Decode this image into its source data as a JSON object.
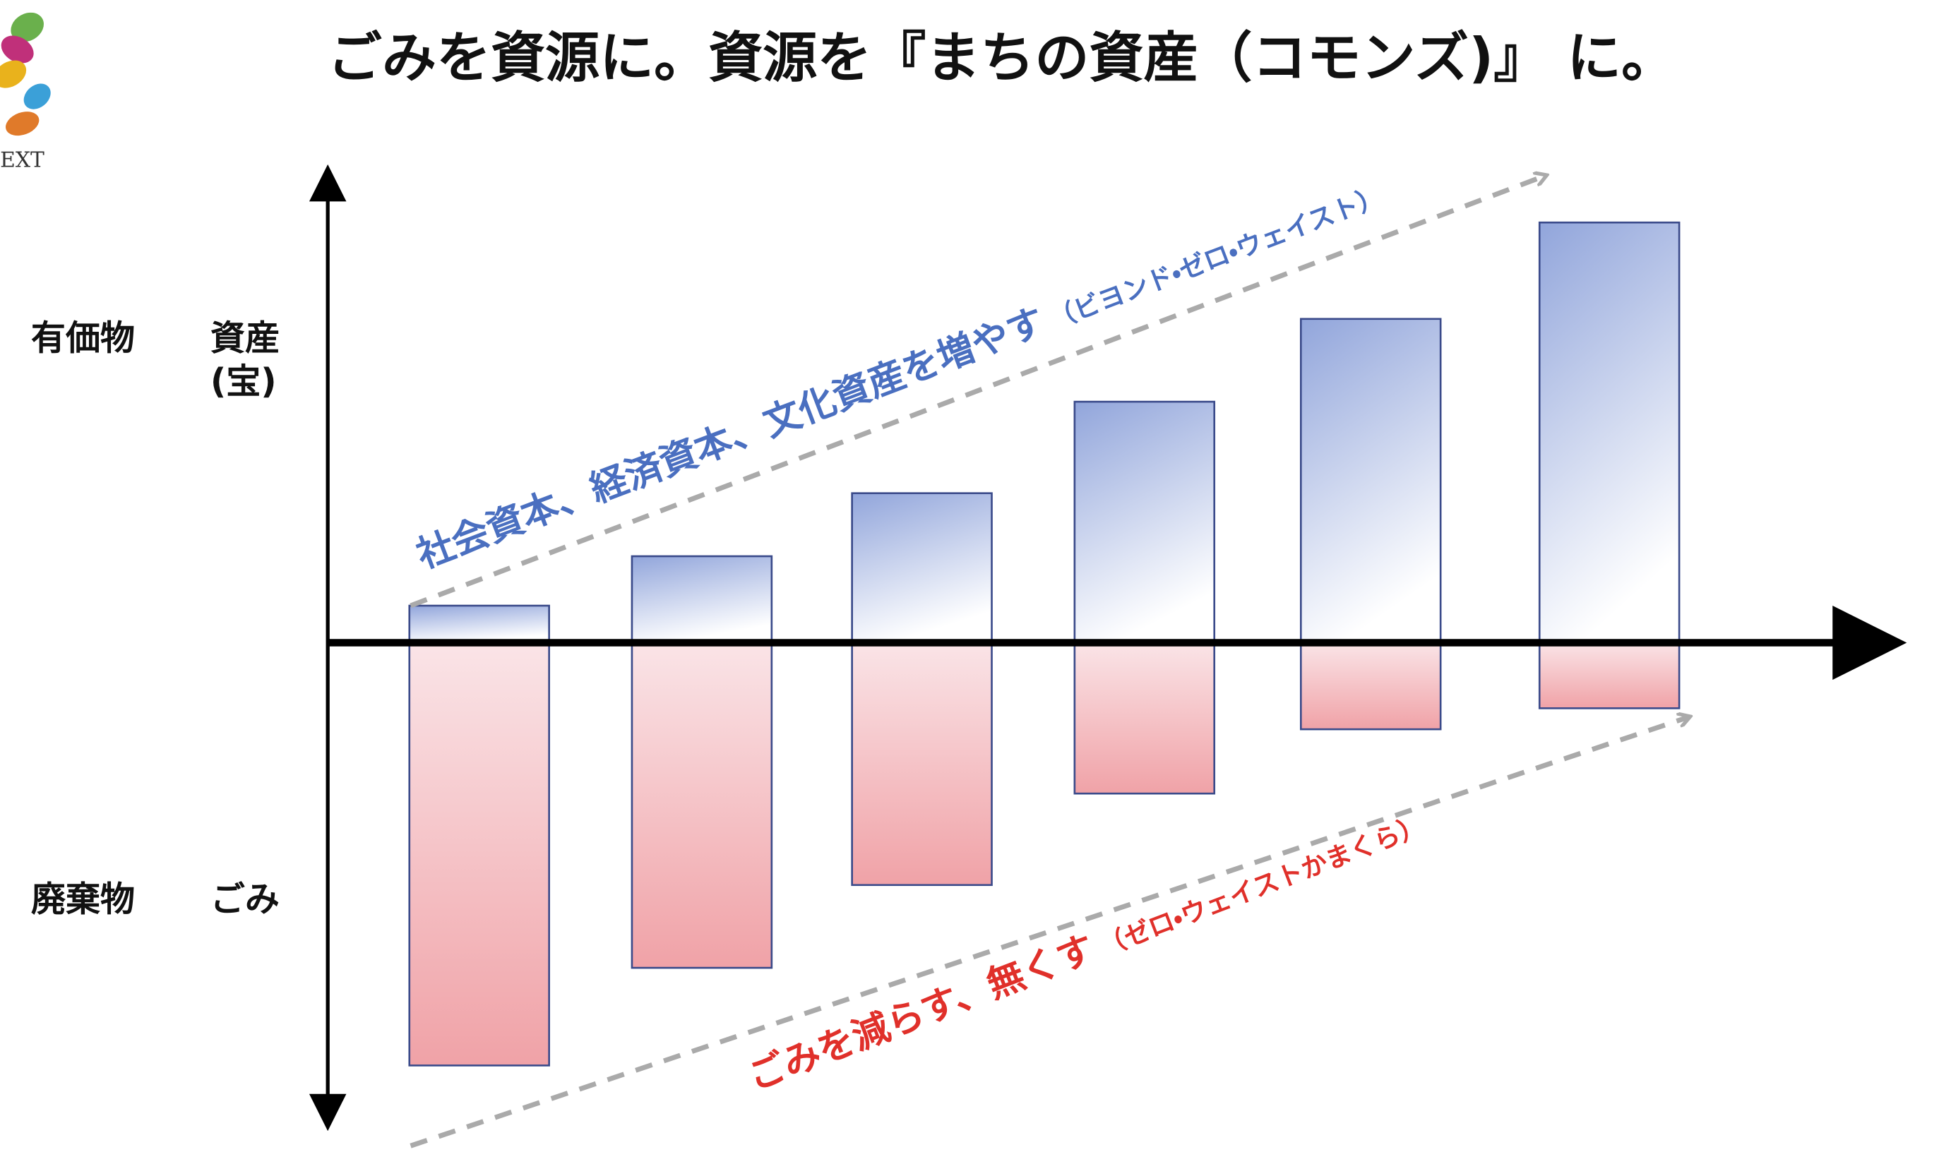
{
  "header": {
    "logo_text": "EXT",
    "title": "ごみを資源に。資源を『まちの資産（コモンズ)』 に。"
  },
  "labels": {
    "valuable": "有価物",
    "asset": "資産",
    "treasure": "(宝)",
    "waste": "廃棄物",
    "garbage": "ごみ"
  },
  "annotations": {
    "increase": {
      "main": "社会資本、経済資本、文化資産を増やす",
      "sub": "（ビヨンド・ゼロ・ウェイスト）"
    },
    "decrease": {
      "main": "ごみを減らす、無くす",
      "sub": "（ゼロ・ウェイストかまくら）"
    }
  }
}
